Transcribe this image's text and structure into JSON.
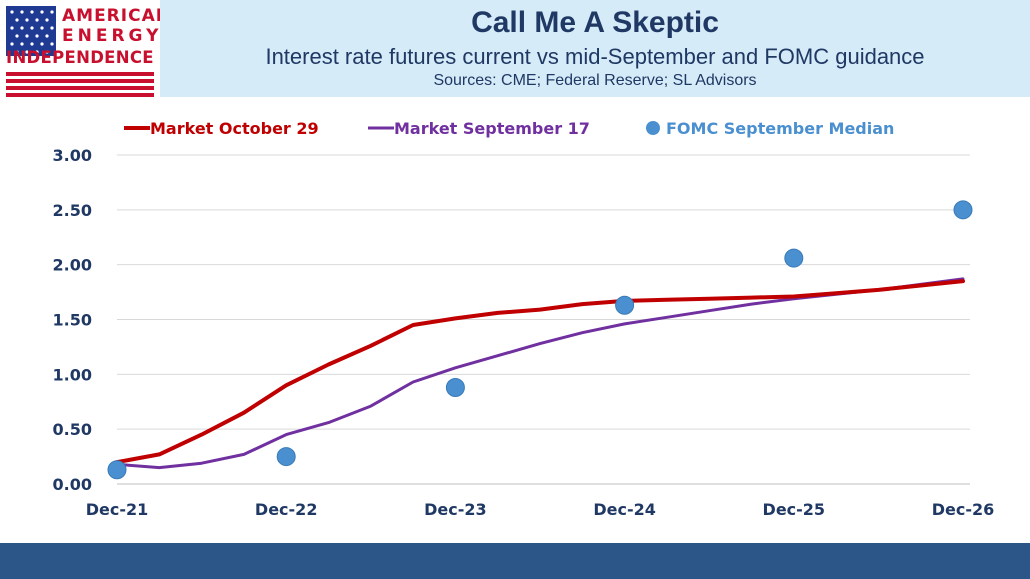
{
  "logo": {
    "line1": "AMERICAN",
    "line2": "ENERGY",
    "line3": "INDEPENDENCE",
    "color_red": "#c8102e",
    "color_blue": "#1f3a93"
  },
  "header": {
    "title": "Call Me A Skeptic",
    "subtitle": "Interest rate futures current vs mid-September and FOMC guidance",
    "sources": "Sources: CME; Federal Reserve; SL Advisors"
  },
  "chart_data": {
    "type": "line",
    "title": "Call Me A Skeptic",
    "xlabel": "",
    "ylabel": "",
    "x_ticks": [
      "Dec-21",
      "Dec-22",
      "Dec-23",
      "Dec-24",
      "Dec-25",
      "Dec-26"
    ],
    "y_ticks": [
      "0.00",
      "0.50",
      "1.00",
      "1.50",
      "2.00",
      "2.50",
      "3.00"
    ],
    "ylim": [
      0,
      3
    ],
    "xlim": [
      0,
      60
    ],
    "grid": true,
    "legend_position": "top",
    "series": [
      {
        "name": "Market October 29",
        "kind": "line",
        "color": "#c00000",
        "x": [
          0,
          3,
          6,
          9,
          12,
          15,
          18,
          21,
          24,
          27,
          30,
          33,
          36,
          39,
          42,
          45,
          48,
          51,
          54,
          57,
          60
        ],
        "y": [
          0.2,
          0.27,
          0.45,
          0.65,
          0.9,
          1.09,
          1.26,
          1.45,
          1.51,
          1.56,
          1.59,
          1.64,
          1.67,
          1.68,
          1.69,
          1.7,
          1.71,
          1.74,
          1.77,
          1.81,
          1.85
        ]
      },
      {
        "name": "Market September 17",
        "kind": "line",
        "color": "#7030a0",
        "x": [
          0,
          3,
          6,
          9,
          12,
          15,
          18,
          21,
          24,
          27,
          30,
          33,
          36,
          39,
          42,
          45,
          48,
          51,
          54,
          57,
          60
        ],
        "y": [
          0.18,
          0.15,
          0.19,
          0.27,
          0.45,
          0.56,
          0.71,
          0.93,
          1.06,
          1.17,
          1.28,
          1.38,
          1.46,
          1.52,
          1.58,
          1.64,
          1.69,
          1.73,
          1.77,
          1.82,
          1.87
        ]
      },
      {
        "name": "FOMC September Median",
        "kind": "scatter",
        "color": "#4a90d0",
        "x": [
          0,
          12,
          24,
          36,
          48,
          60
        ],
        "y": [
          0.13,
          0.25,
          0.88,
          1.63,
          2.06,
          2.5
        ]
      }
    ]
  },
  "footer": {
    "color": "#2c5588"
  }
}
